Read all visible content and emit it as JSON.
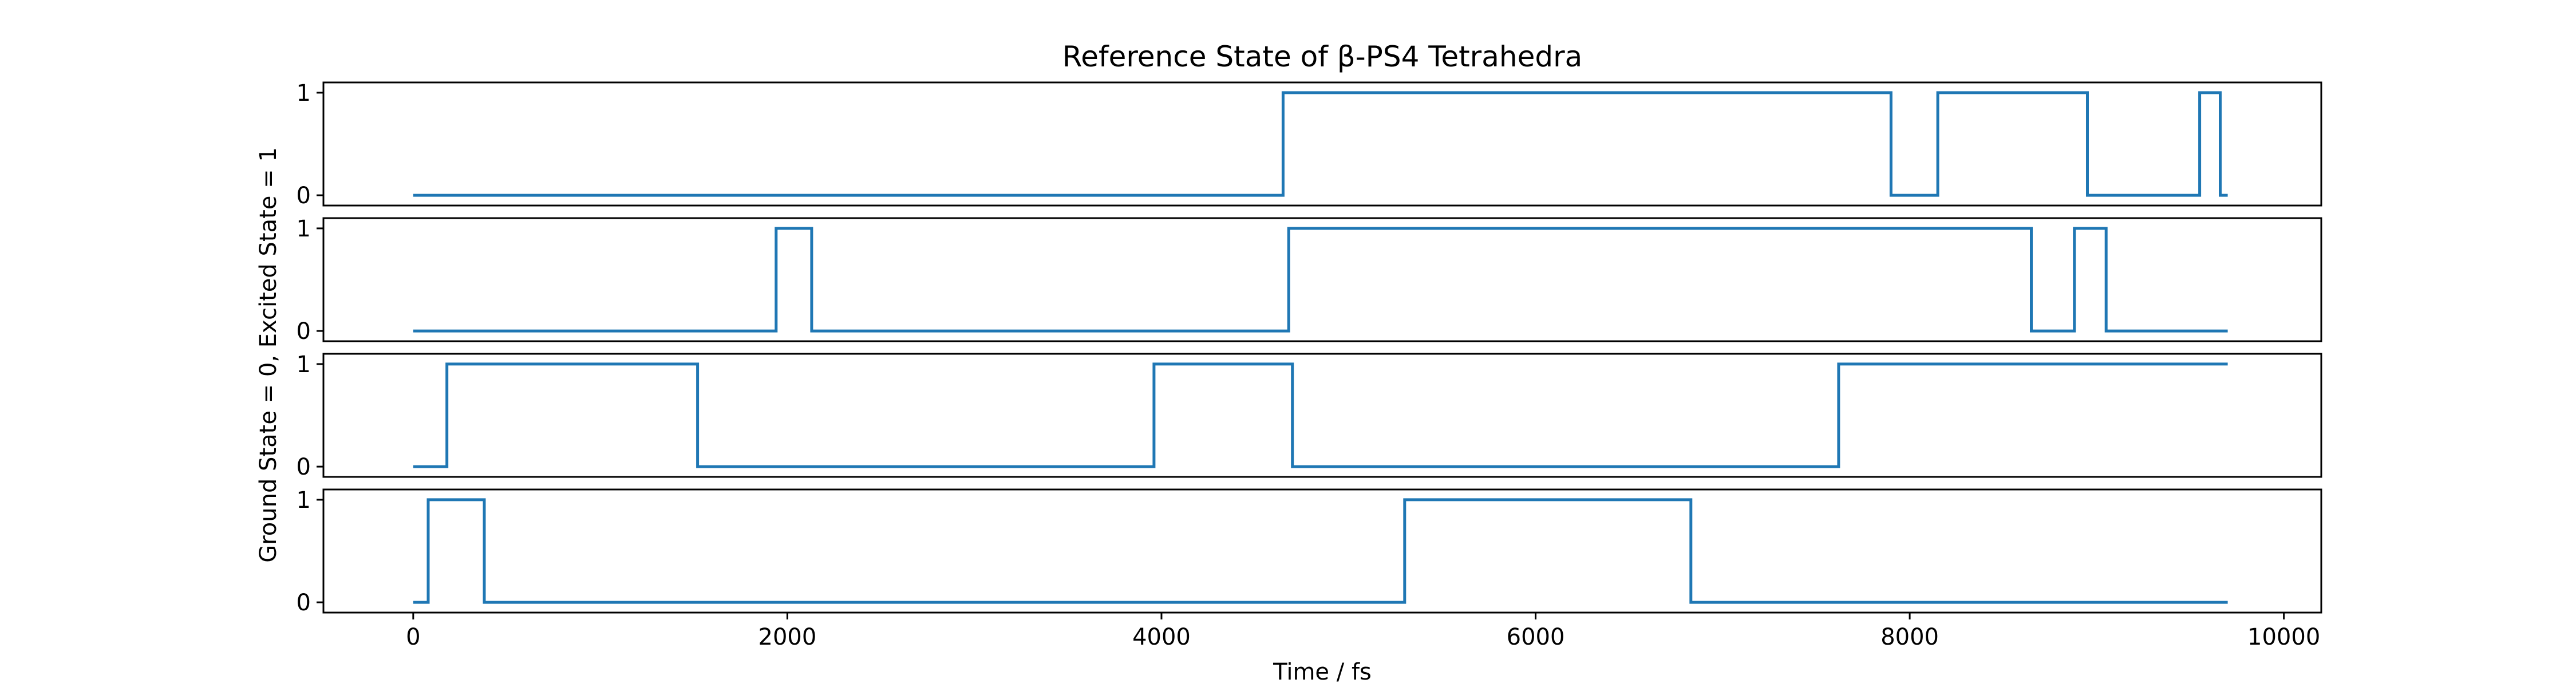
{
  "chart_data": {
    "type": "line",
    "title": "Reference State of β-PS4 Tetrahedra",
    "xlabel": "Time / fs",
    "ylabel": "Ground State = 0, Excited State = 1",
    "xlim": [
      -480,
      10200
    ],
    "ylim": [
      -0.1,
      1.1
    ],
    "xticks": [
      0,
      2000,
      4000,
      6000,
      8000,
      10000
    ],
    "yticks": [
      0,
      1
    ],
    "grid": false,
    "legend": "none",
    "line_color": "#1f77b4",
    "step": "post",
    "series": [
      {
        "x": [
          0,
          4650,
          7900,
          8150,
          8950,
          9550,
          9660,
          9700
        ],
        "values": [
          0,
          1,
          0,
          1,
          0,
          1,
          0,
          0
        ]
      },
      {
        "x": [
          0,
          1940,
          2130,
          4680,
          8650,
          8880,
          9050,
          9700
        ],
        "values": [
          0,
          1,
          0,
          1,
          0,
          1,
          0,
          0
        ]
      },
      {
        "x": [
          0,
          180,
          1520,
          3960,
          4700,
          7620,
          9700
        ],
        "values": [
          0,
          1,
          0,
          1,
          0,
          1,
          1
        ]
      },
      {
        "x": [
          0,
          80,
          380,
          5300,
          6830,
          9700
        ],
        "values": [
          0,
          1,
          0,
          1,
          0,
          0
        ]
      }
    ]
  }
}
